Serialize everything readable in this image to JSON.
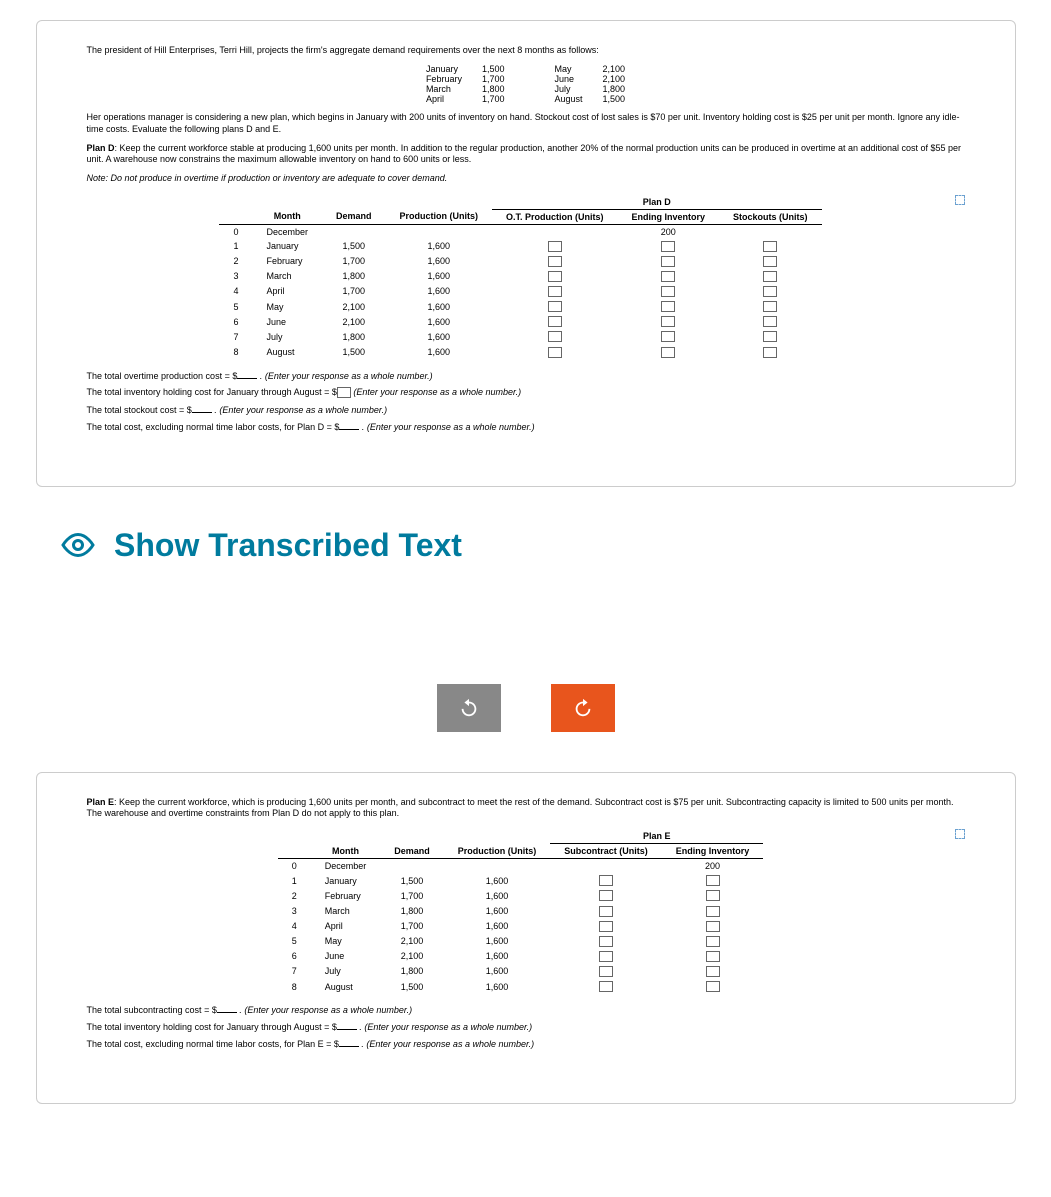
{
  "intro_text": "The president of Hill Enterprises, Terri Hill, projects the firm's aggregate demand requirements over the next 8 months as follows:",
  "demand_months": [
    {
      "m1": "January",
      "v1": "1,500",
      "m2": "May",
      "v2": "2,100"
    },
    {
      "m1": "February",
      "v1": "1,700",
      "m2": "June",
      "v2": "2,100"
    },
    {
      "m1": "March",
      "v1": "1,800",
      "m2": "July",
      "v2": "1,800"
    },
    {
      "m1": "April",
      "v1": "1,700",
      "m2": "August",
      "v2": "1,500"
    }
  ],
  "context_text": "Her operations manager is considering a new plan, which begins in January with 200 units of inventory on hand. Stockout cost of lost sales is $70 per unit. Inventory holding cost is $25 per unit per month. Ignore any idle-time costs. Evaluate the following plans D and E.",
  "plan_d_desc": "Plan D: Keep the current workforce stable at producing 1,600 units per month. In addition to the regular production, another 20% of the normal production units can be produced in overtime at an additional cost of $55 per unit. A warehouse now constrains the maximum allowable inventory on hand to 600 units or less.",
  "note_text": "Note: Do not produce in overtime if production or inventory are adequate to cover demand.",
  "plan_d_label": "Plan D",
  "table_headers_d": [
    "",
    "Month",
    "Demand",
    "Production (Units)",
    "O.T. Production (Units)",
    "Ending Inventory",
    "Stockouts (Units)"
  ],
  "table_headers_e": [
    "",
    "Month",
    "Demand",
    "Production (Units)",
    "Subcontract (Units)",
    "Ending Inventory"
  ],
  "rows": [
    {
      "idx": "0",
      "month": "December",
      "demand": "",
      "prod": "",
      "start_inv": "200"
    },
    {
      "idx": "1",
      "month": "January",
      "demand": "1,500",
      "prod": "1,600"
    },
    {
      "idx": "2",
      "month": "February",
      "demand": "1,700",
      "prod": "1,600"
    },
    {
      "idx": "3",
      "month": "March",
      "demand": "1,800",
      "prod": "1,600"
    },
    {
      "idx": "4",
      "month": "April",
      "demand": "1,700",
      "prod": "1,600"
    },
    {
      "idx": "5",
      "month": "May",
      "demand": "2,100",
      "prod": "1,600"
    },
    {
      "idx": "6",
      "month": "June",
      "demand": "2,100",
      "prod": "1,600"
    },
    {
      "idx": "7",
      "month": "July",
      "demand": "1,800",
      "prod": "1,600"
    },
    {
      "idx": "8",
      "month": "August",
      "demand": "1,500",
      "prod": "1,600"
    }
  ],
  "q_d_1a": "The total overtime production cost = $",
  "q_d_1b": ". (Enter your response as a whole number.)",
  "q_d_2a": "The total inventory holding cost for January through August = $",
  "q_d_2b": "(Enter your response as a whole number.)",
  "q_d_3a": "The total stockout cost = $",
  "q_d_3b": ". (Enter your response as a whole number.)",
  "q_d_4a": "The total cost, excluding normal time labor costs, for Plan D = $",
  "q_d_4b": ". (Enter your response as a whole number.)",
  "show_transcribed": "Show Transcribed Text",
  "plan_e_desc": "Plan E: Keep the current workforce, which is producing 1,600 units per month, and subcontract to meet the rest of the demand. Subcontract cost is $75 per unit. Subcontracting capacity is limited to 500 units per month. The warehouse and overtime constraints from Plan D do not apply to this plan.",
  "plan_e_label": "Plan E",
  "q_e_1a": "The total subcontracting cost = $",
  "q_e_1b": ". (Enter your response as a whole number.)",
  "q_e_2a": "The total inventory holding cost for January through August = $",
  "q_e_2b": ". (Enter your response as a whole number.)",
  "q_e_3a": "The total cost, excluding normal time labor costs, for Plan E = $",
  "q_e_3b": ". (Enter your response as a whole number.)"
}
